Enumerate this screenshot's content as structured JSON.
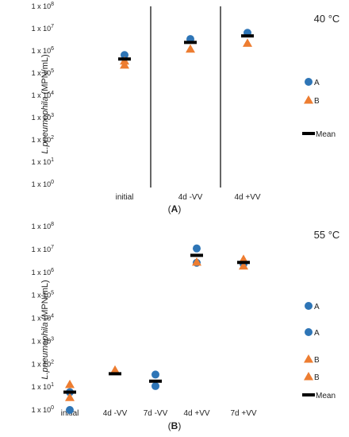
{
  "chart_data": [
    {
      "type": "scatter",
      "panel_label": "A",
      "temperature": "40 °C",
      "ylabel_italic": "L.pneumophila",
      "ylabel_rest": " (MPN/mL)",
      "y_scale": "log",
      "ylim": [
        1,
        100000000
      ],
      "ytick_labels": [
        "1 x 10^0",
        "1 x 10^1",
        "1 x 10^2",
        "1 x 10^3",
        "1 x 10^4",
        "1 x 10^5",
        "1 x 10^6",
        "1 x 10^7",
        "1 x 10^8"
      ],
      "categories": [
        "initial",
        "4d -VV",
        "4d +VV"
      ],
      "separators_after": [
        0,
        1
      ],
      "legend_position": "right",
      "series": [
        {
          "name": "A",
          "marker": "circle",
          "color": "#2E75B6",
          "points": [
            {
              "x": "initial",
              "y": 650000
            },
            {
              "x": "4d -VV",
              "y": 3400000
            },
            {
              "x": "4d +VV",
              "y": 6500000
            }
          ]
        },
        {
          "name": "B",
          "marker": "triangle",
          "color": "#ED7D31",
          "points": [
            {
              "x": "initial",
              "y": 350000
            },
            {
              "x": "initial",
              "y": 230000
            },
            {
              "x": "4d -VV",
              "y": 1200000
            },
            {
              "x": "4d +VV",
              "y": 2200000
            }
          ]
        },
        {
          "name": "Mean",
          "marker": "dash",
          "color": "#000000",
          "points": [
            {
              "x": "initial",
              "y": 430000
            },
            {
              "x": "4d -VV",
              "y": 2400000
            },
            {
              "x": "4d +VV",
              "y": 4700000
            }
          ]
        }
      ]
    },
    {
      "type": "scatter",
      "panel_label": "B",
      "temperature": "55 °C",
      "ylabel_italic": "L.pneumophila",
      "ylabel_rest": " (MPN/mL)",
      "y_scale": "log",
      "ylim": [
        1,
        100000000
      ],
      "ytick_labels": [
        "1 x 10^0",
        "1 x 10^1",
        "1 x 10^2",
        "1 x 10^3",
        "1 x 10^4",
        "1 x 10^5",
        "1 x 10^6",
        "1 x 10^7",
        "1 x 10^8"
      ],
      "categories": [
        "initial",
        "4d -VV",
        "7d -VV",
        "4d +VV",
        "7d +VV"
      ],
      "legend_position": "right",
      "series": [
        {
          "name": "A",
          "marker": "circle",
          "color": "#2E75B6",
          "points": [
            {
              "x": "initial",
              "y": 1
            },
            {
              "x": "7d -VV",
              "y": 35
            },
            {
              "x": "7d -VV",
              "y": 11
            },
            {
              "x": "4d +VV",
              "y": 11000000
            },
            {
              "x": "4d +VV",
              "y": 2600000
            }
          ]
        },
        {
          "name": "A",
          "marker": "circle",
          "color": "#2E75B6",
          "points": [
            {
              "x": "initial",
              "y": 6
            },
            {
              "x": "7d +VV",
              "y": 2300000
            }
          ]
        },
        {
          "name": "B",
          "marker": "triangle",
          "color": "#ED7D31",
          "points": [
            {
              "x": "initial",
              "y": 13
            },
            {
              "x": "4d -VV",
              "y": 55
            },
            {
              "x": "4d +VV",
              "y": 2800000
            },
            {
              "x": "7d +VV",
              "y": 3700000
            }
          ]
        },
        {
          "name": "B",
          "marker": "triangle",
          "color": "#ED7D31",
          "points": [
            {
              "x": "initial",
              "y": 3.5
            },
            {
              "x": "7d +VV",
              "y": 1900000
            }
          ]
        },
        {
          "name": "Mean",
          "marker": "dash",
          "color": "#000000",
          "points": [
            {
              "x": "initial",
              "y": 6
            },
            {
              "x": "4d -VV",
              "y": 38
            },
            {
              "x": "7d -VV",
              "y": 18
            },
            {
              "x": "4d +VV",
              "y": 5500000
            },
            {
              "x": "7d +VV",
              "y": 2700000
            }
          ]
        }
      ]
    }
  ]
}
